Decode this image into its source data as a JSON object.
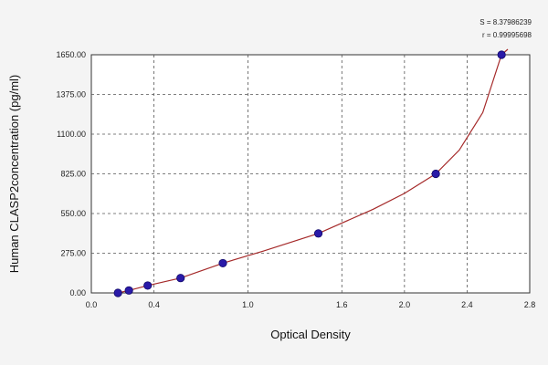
{
  "chart_data": {
    "type": "scatter",
    "title": "",
    "xlabel": "Optical Density",
    "ylabel": "Human CLASP2concentration (pg/ml)",
    "xlim": [
      0.0,
      2.8
    ],
    "ylim": [
      0.0,
      1650.0
    ],
    "x_ticks": [
      {
        "value": 0.0,
        "label": "0.0"
      },
      {
        "value": 0.4,
        "label": "0.4"
      },
      {
        "value": 1.0,
        "label": "1.0"
      },
      {
        "value": 1.6,
        "label": "1.6"
      },
      {
        "value": 2.0,
        "label": "2.0"
      },
      {
        "value": 2.4,
        "label": "2.4"
      },
      {
        "value": 2.8,
        "label": "2.8"
      }
    ],
    "y_ticks": [
      {
        "value": 0.0,
        "label": "0.00"
      },
      {
        "value": 275.0,
        "label": "275.00"
      },
      {
        "value": 550.0,
        "label": "550.00"
      },
      {
        "value": 825.0,
        "label": "825.00"
      },
      {
        "value": 1100.0,
        "label": "1100.00"
      },
      {
        "value": 1375.0,
        "label": "1375.00"
      },
      {
        "value": 1650.0,
        "label": "1650.00"
      }
    ],
    "grid": true,
    "points": [
      {
        "x": 0.17,
        "y": 0
      },
      {
        "x": 0.24,
        "y": 17
      },
      {
        "x": 0.36,
        "y": 51
      },
      {
        "x": 0.57,
        "y": 103
      },
      {
        "x": 0.84,
        "y": 206
      },
      {
        "x": 1.45,
        "y": 412
      },
      {
        "x": 2.2,
        "y": 825
      },
      {
        "x": 2.62,
        "y": 1650
      }
    ],
    "fit_curve": [
      {
        "x": 0.17,
        "y": 0
      },
      {
        "x": 0.24,
        "y": 17
      },
      {
        "x": 0.36,
        "y": 51
      },
      {
        "x": 0.57,
        "y": 103
      },
      {
        "x": 0.84,
        "y": 206
      },
      {
        "x": 1.1,
        "y": 290
      },
      {
        "x": 1.45,
        "y": 412
      },
      {
        "x": 1.8,
        "y": 580
      },
      {
        "x": 2.0,
        "y": 690
      },
      {
        "x": 2.2,
        "y": 825
      },
      {
        "x": 2.35,
        "y": 990
      },
      {
        "x": 2.5,
        "y": 1250
      },
      {
        "x": 2.62,
        "y": 1650
      },
      {
        "x": 2.66,
        "y": 1720
      }
    ],
    "fit_stats": {
      "s": "S = 8.37986239",
      "r": "r = 0.99995698"
    },
    "colors": {
      "background": "#f4f4f4",
      "plot_background": "#ffffff",
      "grid": "#555555",
      "curve": "#a52a2a",
      "marker": "#2a1aa8"
    }
  }
}
